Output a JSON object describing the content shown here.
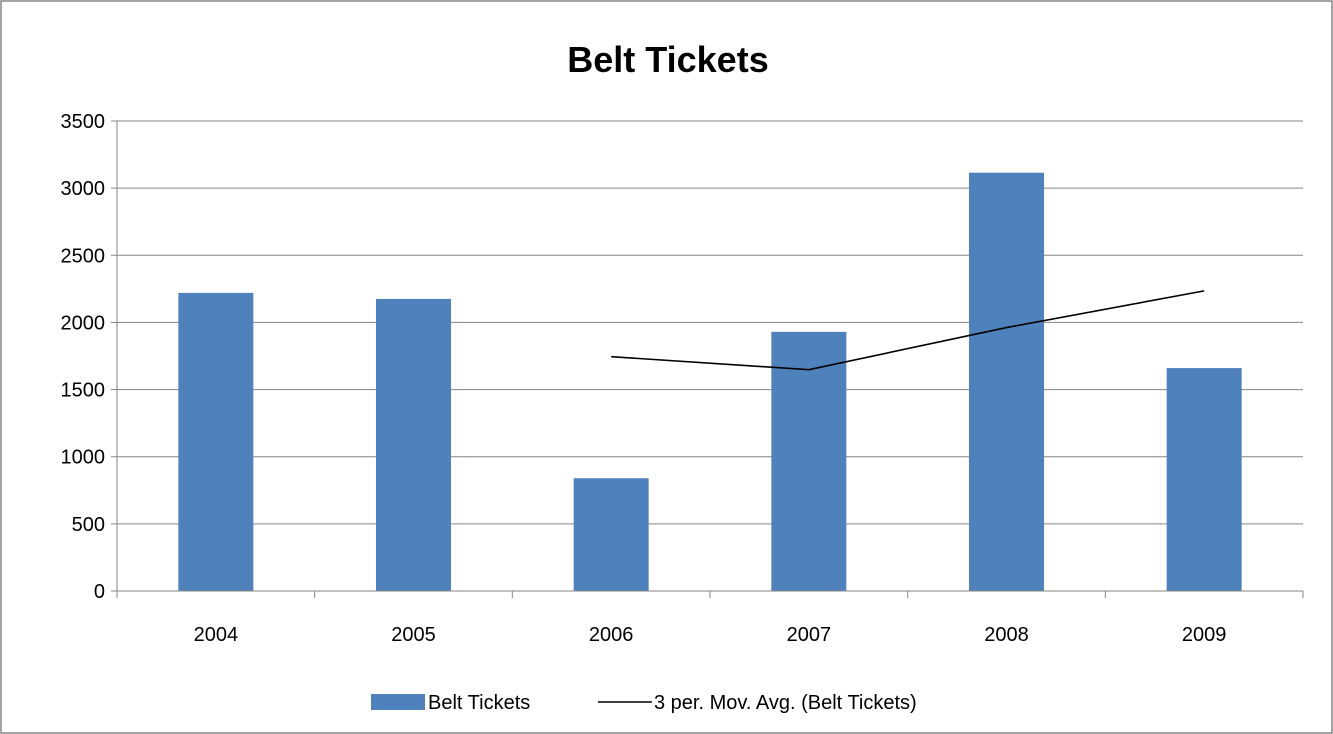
{
  "chart_data": {
    "type": "bar",
    "title": "Belt Tickets",
    "xlabel": "",
    "ylabel": "",
    "categories": [
      "2004",
      "2005",
      "2006",
      "2007",
      "2008",
      "2009"
    ],
    "series": [
      {
        "name": "Belt Tickets",
        "type": "bar",
        "color": "#4F81BD",
        "values": [
          2220,
          2175,
          840,
          1930,
          3115,
          1660
        ]
      },
      {
        "name": "3 per. Mov. Avg. (Belt Tickets)",
        "type": "line",
        "color": "#000000",
        "values": [
          null,
          null,
          1745,
          1648,
          1962,
          2235
        ]
      }
    ],
    "ylim": [
      0,
      3500
    ],
    "yticks": [
      "0",
      "500",
      "1000",
      "1500",
      "2000",
      "2500",
      "3000",
      "3500"
    ],
    "grid": true,
    "legend_position": "bottom"
  }
}
